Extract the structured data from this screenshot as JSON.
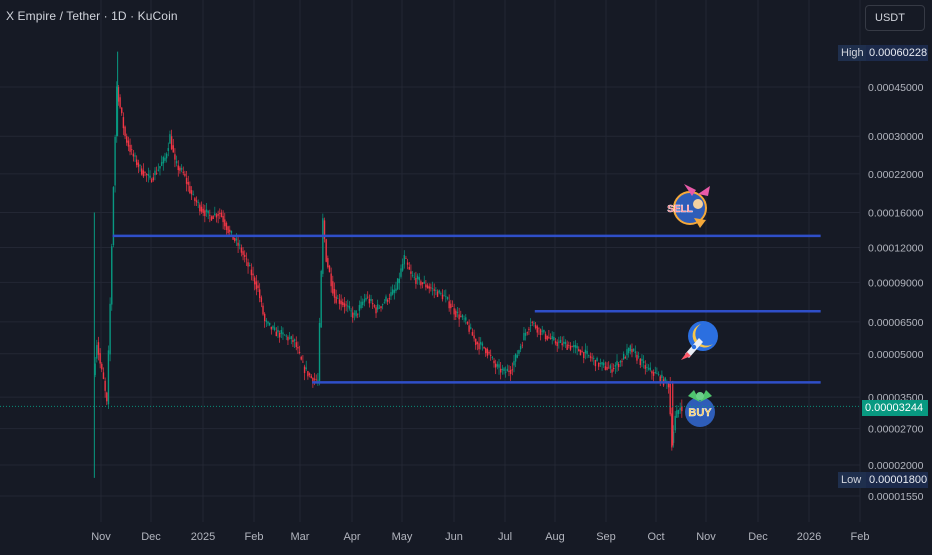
{
  "header": {
    "title": "X Empire / Tether · 1D · KuCoin",
    "currency": "USDT"
  },
  "price_tags": {
    "high_label": "High",
    "high_value": "0.00060228",
    "current_value": "0.00003244",
    "low_label": "Low",
    "low_value": "0.00001800"
  },
  "sticker_text": {
    "sell": "SELL",
    "buy": "BUY"
  },
  "colors": {
    "background": "#161a25",
    "up": "#089981",
    "down": "#f23645",
    "level_line": "#2f4fc9",
    "grid": "#232734",
    "axis_text": "#b2b5be"
  },
  "chart_data": {
    "type": "candlestick",
    "title": "X Empire / Tether · 1D · KuCoin",
    "scale": "log",
    "x_ticks": [
      "Nov",
      "Dec",
      "2025",
      "Feb",
      "Mar",
      "Apr",
      "May",
      "Jun",
      "Jul",
      "Aug",
      "Sep",
      "Oct",
      "Nov",
      "Dec",
      "2026",
      "Feb"
    ],
    "y_ticks": [
      "0.00045000",
      "0.00030000",
      "0.00022000",
      "0.00016000",
      "0.00012000",
      "0.00009000",
      "0.00006500",
      "0.00005000",
      "0.00003500",
      "0.00002700",
      "0.00002000",
      "0.00001550"
    ],
    "high": 0.00060228,
    "low": 1.8e-05,
    "last_price": 3.244e-05,
    "grid": true,
    "horizontal_levels": [
      {
        "price": 0.000132,
        "from": "2024-11-08",
        "to": "2026-01-08"
      },
      {
        "price": 7.1e-05,
        "from": "2025-07-20",
        "to": "2026-01-08"
      },
      {
        "price": 3.95e-05,
        "from": "2025-03-08",
        "to": "2026-01-08"
      }
    ],
    "price_path": [
      [
        "2024-10-28",
        4.2e-05
      ],
      [
        "2024-10-30",
        5.5e-05
      ],
      [
        "2024-11-01",
        4.6e-05
      ],
      [
        "2024-11-03",
        4e-05
      ],
      [
        "2024-11-05",
        3.3e-05
      ],
      [
        "2024-11-07",
        7.5e-05
      ],
      [
        "2024-11-09",
        0.0002
      ],
      [
        "2024-11-11",
        0.00045
      ],
      [
        "2024-11-13",
        0.00038
      ],
      [
        "2024-11-16",
        0.0003
      ],
      [
        "2024-11-20",
        0.00026
      ],
      [
        "2024-11-25",
        0.00023
      ],
      [
        "2024-12-01",
        0.00021
      ],
      [
        "2024-12-06",
        0.00023
      ],
      [
        "2024-12-10",
        0.00025
      ],
      [
        "2024-12-13",
        0.0003
      ],
      [
        "2024-12-16",
        0.00024
      ],
      [
        "2024-12-21",
        0.00022
      ],
      [
        "2024-12-27",
        0.00018
      ],
      [
        "2025-01-01",
        0.000165
      ],
      [
        "2025-01-06",
        0.000155
      ],
      [
        "2025-01-12",
        0.00016
      ],
      [
        "2025-01-18",
        0.000135
      ],
      [
        "2025-01-24",
        0.00012
      ],
      [
        "2025-01-30",
        0.0001
      ],
      [
        "2025-02-04",
        8.5e-05
      ],
      [
        "2025-02-08",
        6.5e-05
      ],
      [
        "2025-02-14",
        6e-05
      ],
      [
        "2025-02-20",
        5.8e-05
      ],
      [
        "2025-02-26",
        5.5e-05
      ],
      [
        "2025-03-03",
        4.5e-05
      ],
      [
        "2025-03-08",
        4.1e-05
      ],
      [
        "2025-03-12",
        4e-05
      ],
      [
        "2025-03-15",
        0.00015
      ],
      [
        "2025-03-17",
        0.00011
      ],
      [
        "2025-03-22",
        8e-05
      ],
      [
        "2025-03-28",
        7.5e-05
      ],
      [
        "2025-04-03",
        6.8e-05
      ],
      [
        "2025-04-10",
        8e-05
      ],
      [
        "2025-04-16",
        7.2e-05
      ],
      [
        "2025-04-22",
        7.8e-05
      ],
      [
        "2025-04-28",
        8.5e-05
      ],
      [
        "2025-05-03",
        0.00011
      ],
      [
        "2025-05-07",
        9.5e-05
      ],
      [
        "2025-05-13",
        9e-05
      ],
      [
        "2025-05-20",
        8.5e-05
      ],
      [
        "2025-05-27",
        8e-05
      ],
      [
        "2025-06-03",
        7e-05
      ],
      [
        "2025-06-09",
        6.5e-05
      ],
      [
        "2025-06-15",
        5.5e-05
      ],
      [
        "2025-06-21",
        5.2e-05
      ],
      [
        "2025-06-27",
        4.5e-05
      ],
      [
        "2025-07-02",
        4.3e-05
      ],
      [
        "2025-07-06",
        4.4e-05
      ],
      [
        "2025-07-10",
        5e-05
      ],
      [
        "2025-07-14",
        5.8e-05
      ],
      [
        "2025-07-18",
        6.5e-05
      ],
      [
        "2025-07-22",
        6.2e-05
      ],
      [
        "2025-07-27",
        5.8e-05
      ],
      [
        "2025-08-02",
        5.5e-05
      ],
      [
        "2025-08-08",
        5.4e-05
      ],
      [
        "2025-08-15",
        5.2e-05
      ],
      [
        "2025-08-22",
        4.9e-05
      ],
      [
        "2025-08-28",
        4.6e-05
      ],
      [
        "2025-09-04",
        4.4e-05
      ],
      [
        "2025-09-10",
        4.7e-05
      ],
      [
        "2025-09-16",
        5.2e-05
      ],
      [
        "2025-09-21",
        4.8e-05
      ],
      [
        "2025-09-26",
        4.4e-05
      ],
      [
        "2025-10-02",
        4.2e-05
      ],
      [
        "2025-10-06",
        4e-05
      ],
      [
        "2025-10-09",
        3.9e-05
      ],
      [
        "2025-10-11",
        2.4e-05
      ],
      [
        "2025-10-13",
        2.95e-05
      ],
      [
        "2025-10-16",
        3.244e-05
      ]
    ]
  }
}
